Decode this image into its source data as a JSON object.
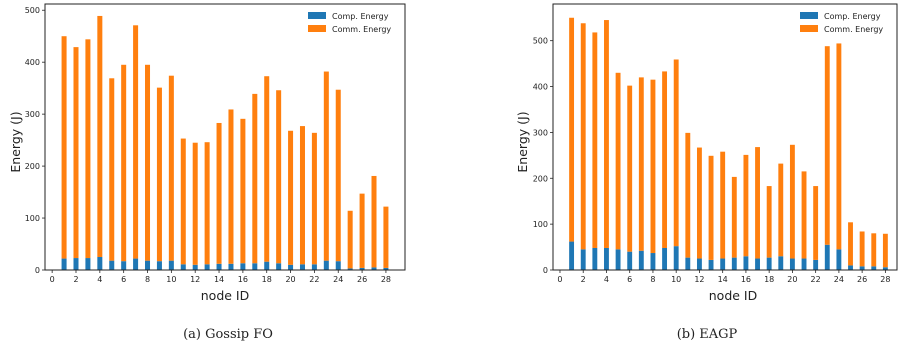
{
  "chart_data": [
    {
      "type": "bar",
      "stacked": true,
      "caption": "(a) Gossip FO",
      "xlabel": "node ID",
      "ylabel": "Energy (J)",
      "x": [
        1,
        2,
        3,
        4,
        5,
        6,
        7,
        8,
        9,
        10,
        11,
        12,
        13,
        14,
        15,
        16,
        17,
        18,
        19,
        20,
        21,
        22,
        23,
        24,
        25,
        26,
        27,
        28
      ],
      "xticks": [
        0,
        2,
        4,
        6,
        8,
        10,
        12,
        14,
        16,
        18,
        20,
        22,
        24,
        26,
        28
      ],
      "yticks": [
        0,
        100,
        200,
        300,
        400,
        500
      ],
      "xlim": [
        -0.6,
        29.6
      ],
      "ylim": [
        0,
        512
      ],
      "legend_position": "top-right",
      "grid": false,
      "series": [
        {
          "name": "Comp. Energy",
          "color": "#1f77b4",
          "values": [
            22,
            23,
            23,
            25,
            18,
            17,
            22,
            18,
            17,
            18,
            11,
            10,
            11,
            12,
            12,
            13,
            13,
            16,
            13,
            10,
            11,
            11,
            18,
            17,
            3,
            4,
            5,
            4
          ]
        },
        {
          "name": "Comm. Energy",
          "color": "#ff7f0e",
          "values": [
            428,
            406,
            421,
            464,
            351,
            378,
            449,
            377,
            334,
            356,
            242,
            235,
            235,
            271,
            297,
            278,
            326,
            357,
            333,
            258,
            266,
            253,
            364,
            330,
            111,
            143,
            176,
            118
          ]
        }
      ]
    },
    {
      "type": "bar",
      "stacked": true,
      "caption": "(b) EAGP",
      "xlabel": "node ID",
      "ylabel": "Energy (J)",
      "x": [
        1,
        2,
        3,
        4,
        5,
        6,
        7,
        8,
        9,
        10,
        11,
        12,
        13,
        14,
        15,
        16,
        17,
        18,
        19,
        20,
        21,
        22,
        23,
        24,
        25,
        26,
        27,
        28
      ],
      "xticks": [
        0,
        2,
        4,
        6,
        8,
        10,
        12,
        14,
        16,
        18,
        20,
        22,
        24,
        26,
        28
      ],
      "yticks": [
        0,
        100,
        200,
        300,
        400,
        500
      ],
      "xlim": [
        -0.6,
        29.0
      ],
      "ylim": [
        0,
        580
      ],
      "legend_position": "top-right",
      "grid": false,
      "series": [
        {
          "name": "Comp. Energy",
          "color": "#1f77b4",
          "values": [
            62,
            45,
            48,
            48,
            45,
            40,
            42,
            37,
            48,
            52,
            27,
            25,
            22,
            25,
            27,
            30,
            25,
            27,
            30,
            25,
            25,
            22,
            55,
            45,
            10,
            8,
            8,
            6
          ]
        },
        {
          "name": "Comm. Energy",
          "color": "#ff7f0e",
          "values": [
            488,
            493,
            470,
            497,
            385,
            362,
            378,
            378,
            385,
            407,
            272,
            242,
            227,
            233,
            176,
            221,
            243,
            156,
            202,
            248,
            190,
            161,
            433,
            449,
            94,
            76,
            72,
            73
          ]
        }
      ]
    }
  ]
}
